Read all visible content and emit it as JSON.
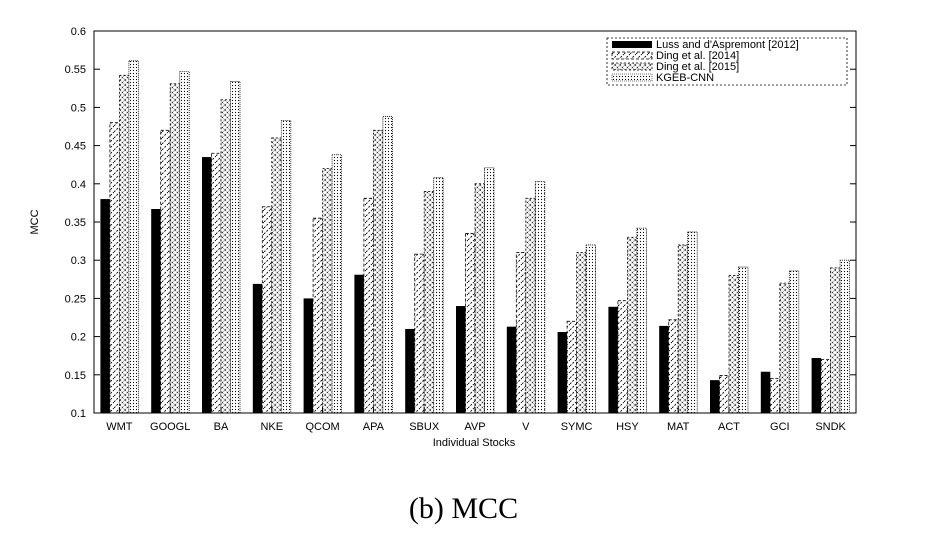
{
  "caption": "(b)  MCC",
  "chart_data": {
    "type": "bar",
    "ylabel": "MCC",
    "xlabel": "Individual Stocks",
    "ylim": [
      0.1,
      0.6
    ],
    "yticks": [
      "0.1",
      "0.15",
      "0.2",
      "0.25",
      "0.3",
      "0.35",
      "0.4",
      "0.45",
      "0.5",
      "0.55",
      "0.6"
    ],
    "grid": false,
    "legend_position": "top-right",
    "categories": [
      "WMT",
      "GOOGL",
      "BA",
      "NKE",
      "QCOM",
      "APA",
      "SBUX",
      "AVP",
      "V",
      "SYMC",
      "HSY",
      "MAT",
      "ACT",
      "GCI",
      "SNDK"
    ],
    "series": [
      {
        "name": "Luss and d'Aspremont [2012]",
        "values": [
          0.38,
          0.367,
          0.435,
          0.269,
          0.25,
          0.281,
          0.21,
          0.24,
          0.213,
          0.206,
          0.239,
          0.214,
          0.143,
          0.154,
          0.172
        ]
      },
      {
        "name": "Ding et al. [2014]",
        "values": [
          0.48,
          0.47,
          0.44,
          0.37,
          0.355,
          0.381,
          0.308,
          0.335,
          0.31,
          0.22,
          0.247,
          0.222,
          0.149,
          0.145,
          0.17
        ]
      },
      {
        "name": "Ding et al. [2015]",
        "values": [
          0.542,
          0.531,
          0.51,
          0.46,
          0.42,
          0.47,
          0.39,
          0.4,
          0.381,
          0.31,
          0.33,
          0.32,
          0.28,
          0.27,
          0.29
        ]
      },
      {
        "name": "KGEB-CNN",
        "values": [
          0.561,
          0.547,
          0.534,
          0.483,
          0.438,
          0.488,
          0.408,
          0.421,
          0.403,
          0.32,
          0.342,
          0.337,
          0.291,
          0.286,
          0.3
        ]
      }
    ],
    "colors": {
      "solid": "#000000",
      "frame": "#000000",
      "hatch": "#000000",
      "background": "#ffffff"
    }
  }
}
